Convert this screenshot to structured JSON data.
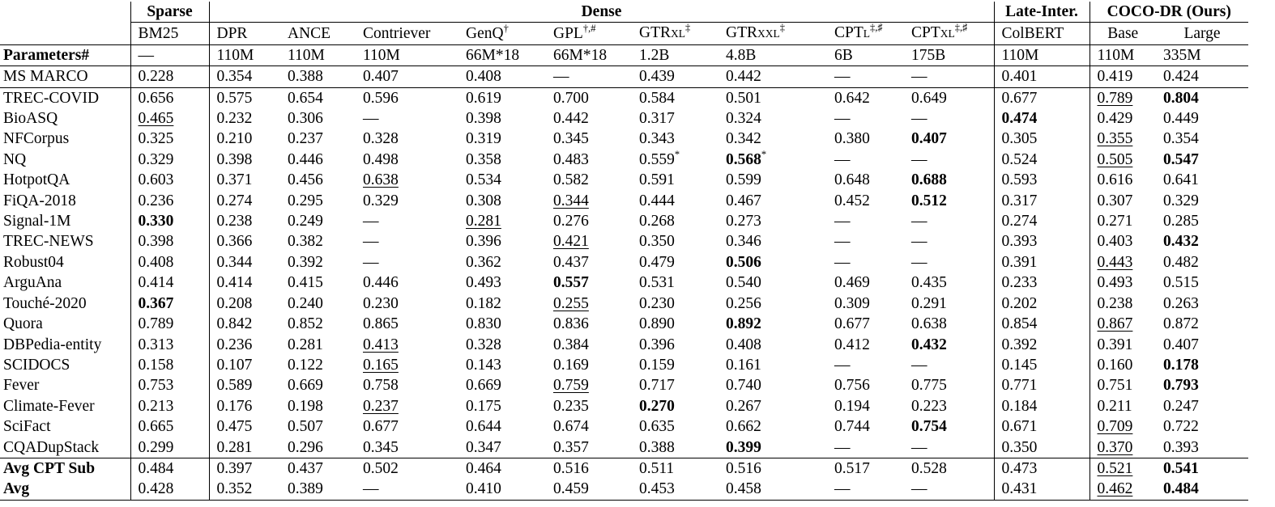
{
  "groups": [
    {
      "label": "Sparse",
      "span": 1
    },
    {
      "label": "Dense",
      "span": 9
    },
    {
      "label": "Late-Inter.",
      "span": 1
    },
    {
      "label": "COCO-DR (Ours)",
      "span": 2
    }
  ],
  "models": [
    {
      "main": "BM25",
      "sub": "",
      "sup": ""
    },
    {
      "main": "DPR",
      "sub": "",
      "sup": ""
    },
    {
      "main": "ANCE",
      "sub": "",
      "sup": ""
    },
    {
      "main": "Contriever",
      "sub": "",
      "sup": ""
    },
    {
      "main": "GenQ",
      "sub": "",
      "sup": "†"
    },
    {
      "main": "GPL",
      "sub": "",
      "sup": "†,#"
    },
    {
      "main": "GTR",
      "sub": "XL",
      "sup": "‡"
    },
    {
      "main": "GTR",
      "sub": "XXL",
      "sup": "‡"
    },
    {
      "main": "CPT",
      "sub": "L",
      "sup": "‡,♯"
    },
    {
      "main": "CPT",
      "sub": "XL",
      "sup": "‡,♯"
    },
    {
      "main": "ColBERT",
      "sub": "",
      "sup": ""
    },
    {
      "main": "Base",
      "sub": "",
      "sup": "",
      "center": true
    },
    {
      "main": "Large",
      "sub": "",
      "sup": "",
      "center": true
    }
  ],
  "params_row": {
    "label": "Parameters#",
    "values": [
      "—",
      "110M",
      "110M",
      "110M",
      "66M*18",
      "66M*18",
      "1.2B",
      "4.8B",
      "6B",
      "175B",
      "110M",
      "110M",
      "335M"
    ]
  },
  "rows": [
    {
      "label": "MS MARCO",
      "values": [
        "0.228",
        "0.354",
        "0.388",
        "0.407",
        "0.408",
        "—",
        "0.439",
        "0.442",
        "—",
        "—",
        "0.401",
        "0.419",
        "0.424"
      ],
      "bold": [],
      "underline": [],
      "star": []
    },
    {
      "label": "TREC-COVID",
      "values": [
        "0.656",
        "0.575",
        "0.654",
        "0.596",
        "0.619",
        "0.700",
        "0.584",
        "0.501",
        "0.642",
        "0.649",
        "0.677",
        "0.789",
        "0.804"
      ],
      "bold": [
        12
      ],
      "underline": [
        11
      ],
      "star": []
    },
    {
      "label": "BioASQ",
      "values": [
        "0.465",
        "0.232",
        "0.306",
        "—",
        "0.398",
        "0.442",
        "0.317",
        "0.324",
        "—",
        "—",
        "0.474",
        "0.429",
        "0.449"
      ],
      "bold": [
        10
      ],
      "underline": [
        0
      ],
      "star": []
    },
    {
      "label": "NFCorpus",
      "values": [
        "0.325",
        "0.210",
        "0.237",
        "0.328",
        "0.319",
        "0.345",
        "0.343",
        "0.342",
        "0.380",
        "0.407",
        "0.305",
        "0.355",
        "0.354"
      ],
      "bold": [
        9
      ],
      "underline": [
        11
      ],
      "star": []
    },
    {
      "label": "NQ",
      "values": [
        "0.329",
        "0.398",
        "0.446",
        "0.498",
        "0.358",
        "0.483",
        "0.559",
        "0.568",
        "—",
        "—",
        "0.524",
        "0.505",
        "0.547"
      ],
      "bold": [
        7,
        12
      ],
      "underline": [
        11
      ],
      "star": [
        6,
        7
      ]
    },
    {
      "label": "HotpotQA",
      "values": [
        "0.603",
        "0.371",
        "0.456",
        "0.638",
        "0.534",
        "0.582",
        "0.591",
        "0.599",
        "0.648",
        "0.688",
        "0.593",
        "0.616",
        "0.641"
      ],
      "bold": [
        9
      ],
      "underline": [
        3
      ],
      "star": []
    },
    {
      "label": "FiQA-2018",
      "values": [
        "0.236",
        "0.274",
        "0.295",
        "0.329",
        "0.308",
        "0.344",
        "0.444",
        "0.467",
        "0.452",
        "0.512",
        "0.317",
        "0.307",
        "0.329"
      ],
      "bold": [
        9
      ],
      "underline": [
        5
      ],
      "star": []
    },
    {
      "label": "Signal-1M",
      "values": [
        "0.330",
        "0.238",
        "0.249",
        "—",
        "0.281",
        "0.276",
        "0.268",
        "0.273",
        "—",
        "—",
        "0.274",
        "0.271",
        "0.285"
      ],
      "bold": [
        0
      ],
      "underline": [
        4
      ],
      "star": []
    },
    {
      "label": "TREC-NEWS",
      "values": [
        "0.398",
        "0.366",
        "0.382",
        "—",
        "0.396",
        "0.421",
        "0.350",
        "0.346",
        "—",
        "—",
        "0.393",
        "0.403",
        "0.432"
      ],
      "bold": [
        12
      ],
      "underline": [
        5
      ],
      "star": []
    },
    {
      "label": "Robust04",
      "values": [
        "0.408",
        "0.344",
        "0.392",
        "—",
        "0.362",
        "0.437",
        "0.479",
        "0.506",
        "—",
        "—",
        "0.391",
        "0.443",
        "0.482"
      ],
      "bold": [
        7
      ],
      "underline": [
        11
      ],
      "star": []
    },
    {
      "label": "ArguAna",
      "values": [
        "0.414",
        "0.414",
        "0.415",
        "0.446",
        "0.493",
        "0.557",
        "0.531",
        "0.540",
        "0.469",
        "0.435",
        "0.233",
        "0.493",
        "0.515"
      ],
      "bold": [
        5
      ],
      "underline": [],
      "star": []
    },
    {
      "label": "Touché-2020",
      "values": [
        "0.367",
        "0.208",
        "0.240",
        "0.230",
        "0.182",
        "0.255",
        "0.230",
        "0.256",
        "0.309",
        "0.291",
        "0.202",
        "0.238",
        "0.263"
      ],
      "bold": [
        0
      ],
      "underline": [
        5
      ],
      "star": []
    },
    {
      "label": "Quora",
      "values": [
        "0.789",
        "0.842",
        "0.852",
        "0.865",
        "0.830",
        "0.836",
        "0.890",
        "0.892",
        "0.677",
        "0.638",
        "0.854",
        "0.867",
        "0.872"
      ],
      "bold": [
        7
      ],
      "underline": [
        11
      ],
      "star": []
    },
    {
      "label": "DBPedia-entity",
      "values": [
        "0.313",
        "0.236",
        "0.281",
        "0.413",
        "0.328",
        "0.384",
        "0.396",
        "0.408",
        "0.412",
        "0.432",
        "0.392",
        "0.391",
        "0.407"
      ],
      "bold": [
        9
      ],
      "underline": [
        3
      ],
      "star": []
    },
    {
      "label": "SCIDOCS",
      "values": [
        "0.158",
        "0.107",
        "0.122",
        "0.165",
        "0.143",
        "0.169",
        "0.159",
        "0.161",
        "—",
        "—",
        "0.145",
        "0.160",
        "0.178"
      ],
      "bold": [
        12
      ],
      "underline": [
        3
      ],
      "star": []
    },
    {
      "label": "Fever",
      "values": [
        "0.753",
        "0.589",
        "0.669",
        "0.758",
        "0.669",
        "0.759",
        "0.717",
        "0.740",
        "0.756",
        "0.775",
        "0.771",
        "0.751",
        "0.793"
      ],
      "bold": [
        12
      ],
      "underline": [
        5
      ],
      "star": []
    },
    {
      "label": "Climate-Fever",
      "values": [
        "0.213",
        "0.176",
        "0.198",
        "0.237",
        "0.175",
        "0.235",
        "0.270",
        "0.267",
        "0.194",
        "0.223",
        "0.184",
        "0.211",
        "0.247"
      ],
      "bold": [
        6
      ],
      "underline": [
        3
      ],
      "star": []
    },
    {
      "label": "SciFact",
      "values": [
        "0.665",
        "0.475",
        "0.507",
        "0.677",
        "0.644",
        "0.674",
        "0.635",
        "0.662",
        "0.744",
        "0.754",
        "0.671",
        "0.709",
        "0.722"
      ],
      "bold": [
        9
      ],
      "underline": [
        11
      ],
      "star": []
    },
    {
      "label": "CQADupStack",
      "values": [
        "0.299",
        "0.281",
        "0.296",
        "0.345",
        "0.347",
        "0.357",
        "0.388",
        "0.399",
        "—",
        "—",
        "0.350",
        "0.370",
        "0.393"
      ],
      "bold": [
        7
      ],
      "underline": [
        11
      ],
      "star": []
    }
  ],
  "avg_rows": [
    {
      "label": "Avg CPT Sub",
      "values": [
        "0.484",
        "0.397",
        "0.437",
        "0.502",
        "0.464",
        "0.516",
        "0.511",
        "0.516",
        "0.517",
        "0.528",
        "0.473",
        "0.521",
        "0.541"
      ],
      "bold": [
        12
      ],
      "underline": [
        11
      ],
      "star": []
    },
    {
      "label": "Avg",
      "values": [
        "0.428",
        "0.352",
        "0.389",
        "—",
        "0.410",
        "0.459",
        "0.453",
        "0.458",
        "—",
        "—",
        "0.431",
        "0.462",
        "0.484"
      ],
      "bold": [
        12
      ],
      "underline": [
        11
      ],
      "star": []
    }
  ]
}
